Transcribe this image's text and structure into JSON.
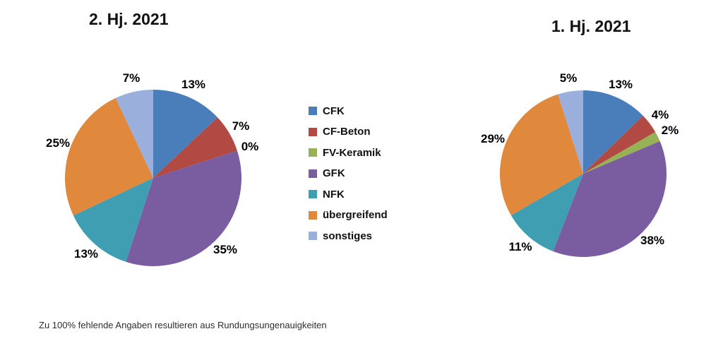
{
  "page": {
    "background": "#ffffff",
    "footnote": "Zu 100% fehlende Angaben resultieren aus Rundungsungenauigkeiten"
  },
  "legend": {
    "items": [
      {
        "label": "CFK",
        "color": "#4A7EBB"
      },
      {
        "label": "CF-Beton",
        "color": "#B04A42"
      },
      {
        "label": "FV-Keramik",
        "color": "#97B254"
      },
      {
        "label": "GFK",
        "color": "#7A5CA1"
      },
      {
        "label": "NFK",
        "color": "#3F9EB2"
      },
      {
        "label": "übergreifend",
        "color": "#E0883C"
      },
      {
        "label": "sonstiges",
        "color": "#9AAFDC"
      }
    ]
  },
  "chart_data": [
    {
      "type": "pie",
      "title": "2. Hj. 2021",
      "categories": [
        "CFK",
        "CF-Beton",
        "FV-Keramik",
        "GFK",
        "NFK",
        "übergreifend",
        "sonstiges"
      ],
      "values": [
        13,
        7,
        0,
        35,
        13,
        25,
        7
      ],
      "labels": [
        "13%",
        "7%",
        "0%",
        "35%",
        "13%",
        "25%",
        "7%"
      ],
      "colors": [
        "#4A7EBB",
        "#B04A42",
        "#97B254",
        "#7A5CA1",
        "#3F9EB2",
        "#E0883C",
        "#9AAFDC"
      ],
      "unit": "%",
      "start_angle_deg": 0,
      "direction": "clockwise",
      "legend_position": "right-of-chart"
    },
    {
      "type": "pie",
      "title": "1. Hj. 2021",
      "categories": [
        "CFK",
        "CF-Beton",
        "FV-Keramik",
        "GFK",
        "NFK",
        "übergreifend",
        "sonstiges"
      ],
      "values": [
        13,
        4,
        2,
        38,
        11,
        29,
        5
      ],
      "labels": [
        "13%",
        "4%",
        "2%",
        "38%",
        "11%",
        "29%",
        "5%"
      ],
      "colors": [
        "#4A7EBB",
        "#B04A42",
        "#97B254",
        "#7A5CA1",
        "#3F9EB2",
        "#E0883C",
        "#9AAFDC"
      ],
      "unit": "%",
      "start_angle_deg": 0,
      "direction": "clockwise",
      "legend_position": "left-of-chart"
    }
  ]
}
